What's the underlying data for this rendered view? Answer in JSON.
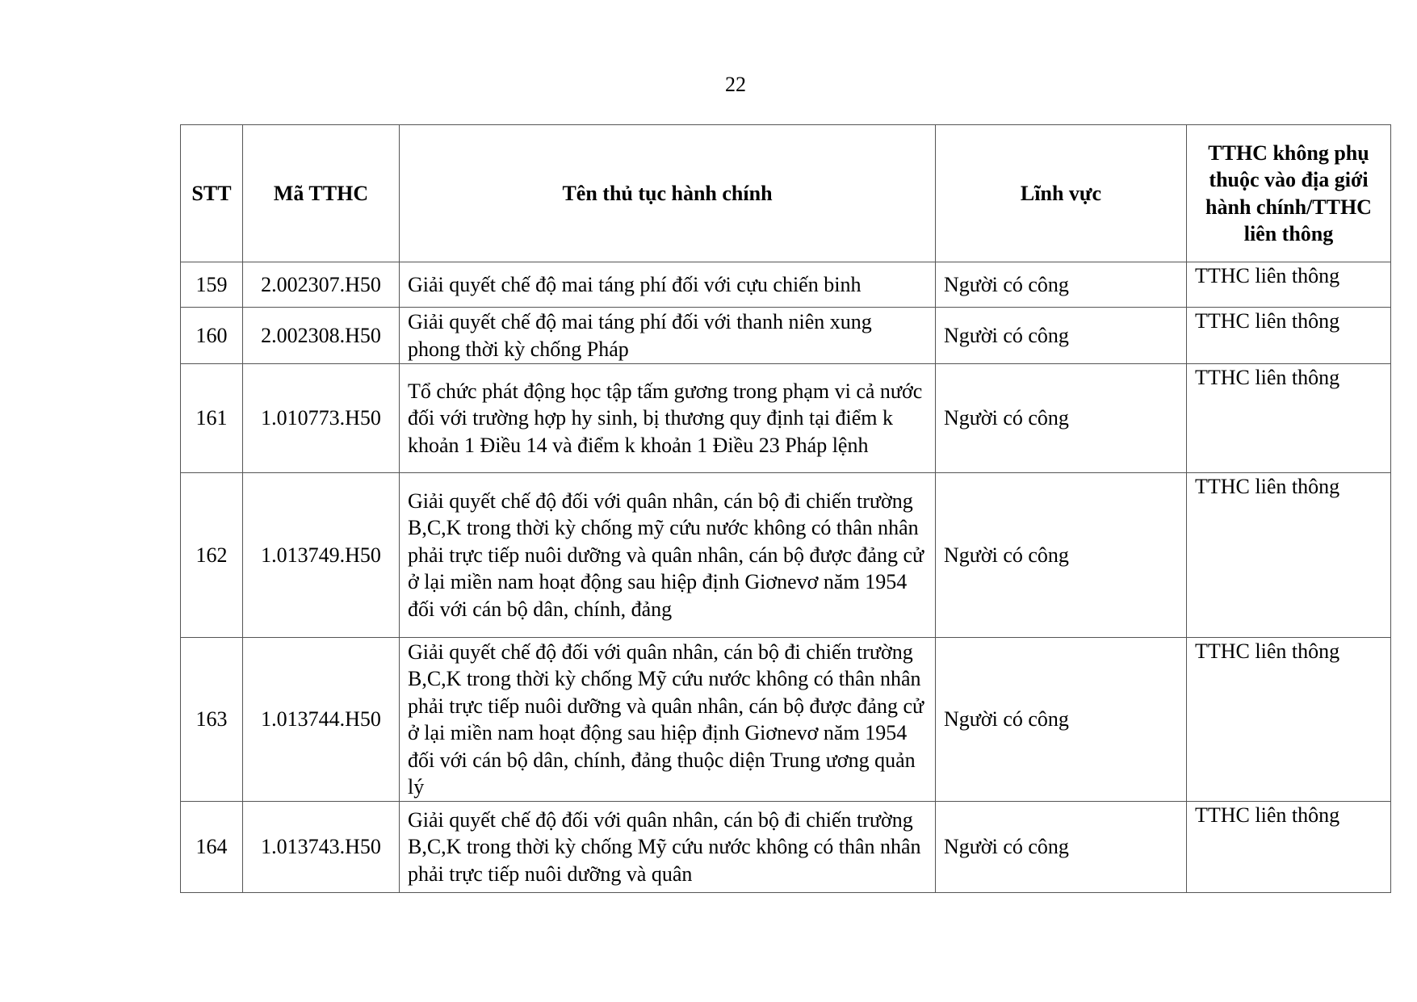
{
  "page_number": "22",
  "table": {
    "headers": [
      "STT",
      "Mã TTHC",
      "Tên thủ tục hành chính",
      "Lĩnh vực",
      "TTHC không phụ thuộc vào địa giới hành chính/TTHC liên thông"
    ],
    "rows": [
      {
        "stt": "159",
        "code": "2.002307.H50",
        "name": "Giải quyết chế độ mai táng phí đối với cựu chiến binh",
        "field": "Người có công",
        "type": "TTHC liên thông"
      },
      {
        "stt": "160",
        "code": "2.002308.H50",
        "name": "Giải quyết chế độ mai táng phí đối với thanh niên xung phong thời kỳ chống Pháp",
        "field": "Người có công",
        "type": "TTHC liên thông"
      },
      {
        "stt": "161",
        "code": "1.010773.H50",
        "name": "Tổ chức phát động học tập tấm gương trong phạm vi cả nước đối với trường hợp hy sinh, bị thương quy định tại điểm k khoản 1 Điều 14 và điểm k khoản 1 Điều 23 Pháp lệnh",
        "field": "Người có công",
        "type": "TTHC liên thông"
      },
      {
        "stt": "162",
        "code": "1.013749.H50",
        "name": "Giải quyết chế độ đối với quân nhân, cán bộ đi chiến trường B,C,K trong thời kỳ chống mỹ cứu nước không có thân nhân phải trực tiếp nuôi dưỡng và quân nhân, cán bộ được đảng cử ở lại miền nam hoạt động sau hiệp định Giơnevơ năm 1954 đối với cán bộ dân, chính, đảng",
        "field": "Người có công",
        "type": "TTHC liên thông"
      },
      {
        "stt": "163",
        "code": "1.013744.H50",
        "name": "Giải quyết chế độ đối với quân nhân, cán bộ đi chiến trường B,C,K trong thời kỳ chống Mỹ cứu nước không có thân nhân phải trực tiếp nuôi dưỡng và quân nhân, cán bộ được đảng cử ở lại miền nam hoạt động sau hiệp định Giơnevơ năm 1954 đối với cán bộ dân, chính, đảng thuộc diện Trung ương quản lý",
        "field": "Người có công",
        "type": "TTHC liên thông"
      },
      {
        "stt": "164",
        "code": "1.013743.H50",
        "name": "Giải quyết chế độ đối với quân nhân, cán bộ đi chiến trường B,C,K trong thời kỳ chống Mỹ cứu nước không có thân nhân phải trực tiếp nuôi dưỡng và quân",
        "field": "Người có công",
        "type": "TTHC liên thông"
      }
    ]
  }
}
